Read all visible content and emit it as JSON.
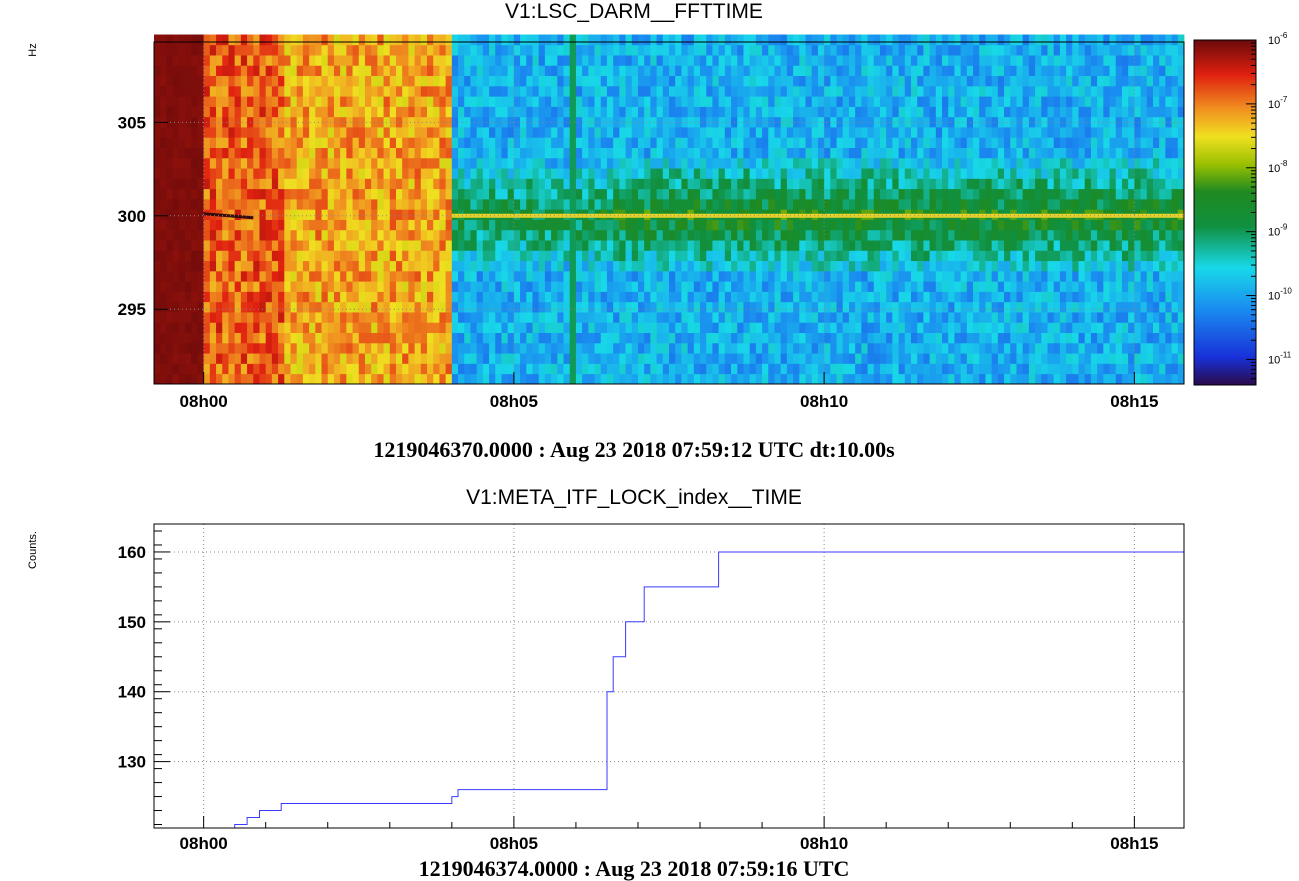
{
  "chart_data": [
    {
      "type": "heatmap",
      "title": "V1:LSC_DARM__FFTTIME",
      "ylabel": "Hz",
      "xlim_minutes": [
        -0.8,
        15.8
      ],
      "ylim": [
        291,
        309.3
      ],
      "x_ticks": [
        {
          "value": 0,
          "label": "08h00"
        },
        {
          "value": 5,
          "label": "08h05"
        },
        {
          "value": 10,
          "label": "08h10"
        },
        {
          "value": 15,
          "label": "08h15"
        }
      ],
      "y_ticks": [
        {
          "value": 295,
          "label": "295"
        },
        {
          "value": 300,
          "label": "300"
        },
        {
          "value": 305,
          "label": "305"
        }
      ],
      "colorbar": {
        "scale": "log",
        "ticks": [
          {
            "exp": -6,
            "label": "10-6"
          },
          {
            "exp": -7,
            "label": "10-7"
          },
          {
            "exp": -8,
            "label": "10-8"
          },
          {
            "exp": -9,
            "label": "10-9"
          },
          {
            "exp": -10,
            "label": "10-10"
          },
          {
            "exp": -11,
            "label": "10-11"
          }
        ],
        "range_exp": [
          -11.4,
          -6
        ]
      },
      "regions": [
        {
          "x_start": -0.8,
          "x_end": 0.0,
          "level_exp": -6.1
        },
        {
          "x_start": 0.0,
          "x_end": 4.0,
          "level_exp": -7.2
        },
        {
          "x_start": 4.0,
          "x_end": 15.8,
          "level_exp": -9.9
        }
      ],
      "line_hz": 300,
      "grid": true,
      "caption": "1219046370.0000 : Aug 23 2018 07:59:12 UTC dt:10.00s"
    },
    {
      "type": "line",
      "title": "V1:META_ITF_LOCK_index__TIME",
      "ylabel": "Counts.",
      "xlim_minutes": [
        -0.8,
        15.8
      ],
      "ylim": [
        120.5,
        164
      ],
      "x_ticks": [
        {
          "value": 0,
          "label": "08h00"
        },
        {
          "value": 5,
          "label": "08h05"
        },
        {
          "value": 10,
          "label": "08h10"
        },
        {
          "value": 15,
          "label": "08h15"
        }
      ],
      "y_ticks": [
        {
          "value": 130,
          "label": "130"
        },
        {
          "value": 140,
          "label": "140"
        },
        {
          "value": 150,
          "label": "150"
        },
        {
          "value": 160,
          "label": "160"
        }
      ],
      "series": [
        {
          "color": "#3b3bff",
          "step": true,
          "x": [
            0.5,
            0.7,
            0.9,
            1.25,
            4.0,
            4.1,
            4.2,
            6.5,
            6.6,
            6.8,
            7.1,
            8.3,
            15.8
          ],
          "y": [
            121,
            122,
            123,
            124,
            125,
            126,
            126,
            140,
            145,
            150,
            155,
            160,
            160
          ]
        }
      ],
      "grid": true,
      "caption": "1219046374.0000 : Aug 23 2018 07:59:16 UTC"
    }
  ]
}
